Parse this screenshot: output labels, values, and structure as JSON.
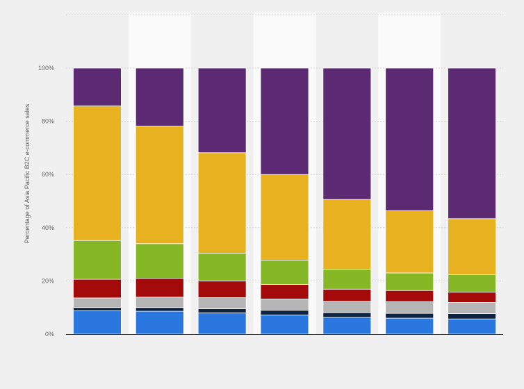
{
  "chart_data": {
    "type": "bar",
    "stacked": true,
    "title": "",
    "xlabel": "",
    "ylabel": "Percentage of Asia Pacific B2C e-commerce sales",
    "ylim": [
      0,
      100
    ],
    "yticks": [
      {
        "value": 0,
        "label": "0%"
      },
      {
        "value": 20,
        "label": "20%"
      },
      {
        "value": 40,
        "label": "40%"
      },
      {
        "value": 60,
        "label": "60%"
      },
      {
        "value": 80,
        "label": "80%"
      },
      {
        "value": 100,
        "label": "100%"
      }
    ],
    "grid": true,
    "legend": "none",
    "categories": [
      "",
      "",
      "",
      "",
      "",
      "",
      ""
    ],
    "series": [
      {
        "color": "#2a77e0",
        "values": [
          8.8,
          8.6,
          8.0,
          7.2,
          6.3,
          6.0,
          5.7
        ]
      },
      {
        "color": "#0d2340",
        "values": [
          1.2,
          1.4,
          1.5,
          1.8,
          1.8,
          1.8,
          2.0
        ]
      },
      {
        "color": "#b5b5b5",
        "values": [
          3.6,
          3.9,
          4.2,
          4.2,
          4.2,
          4.4,
          4.2
        ]
      },
      {
        "color": "#a50a0a",
        "values": [
          7.0,
          7.1,
          6.3,
          5.5,
          4.6,
          4.2,
          3.9
        ]
      },
      {
        "color": "#86b826",
        "values": [
          14.6,
          13.0,
          10.4,
          9.1,
          7.5,
          6.6,
          6.5
        ]
      },
      {
        "color": "#e8b120",
        "values": [
          50.6,
          44.2,
          37.8,
          32.2,
          26.2,
          23.4,
          21.1
        ]
      },
      {
        "color": "#5c2a72",
        "values": [
          14.2,
          21.8,
          31.8,
          40.0,
          49.4,
          53.6,
          56.6
        ]
      }
    ]
  }
}
